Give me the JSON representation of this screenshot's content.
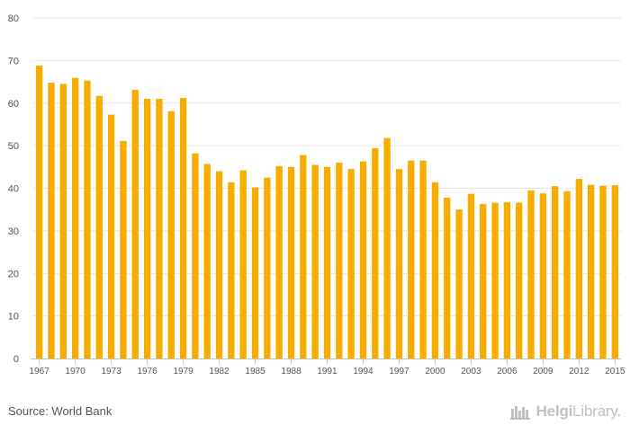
{
  "chart_data": {
    "type": "bar",
    "ylim": [
      0,
      80
    ],
    "yticks": [
      0,
      10,
      20,
      30,
      40,
      50,
      60,
      70,
      80
    ],
    "xtick_labels": [
      "1967",
      "1970",
      "1973",
      "1976",
      "1979",
      "1982",
      "1985",
      "1988",
      "1991",
      "1994",
      "1997",
      "2000",
      "2003",
      "2006",
      "2009",
      "2012",
      "2015"
    ],
    "grid": true,
    "bar_color": "#f7ad00",
    "categories": [
      "1967",
      "1968",
      "1969",
      "1970",
      "1971",
      "1972",
      "1973",
      "1974",
      "1975",
      "1976",
      "1977",
      "1978",
      "1979",
      "1980",
      "1981",
      "1982",
      "1983",
      "1984",
      "1985",
      "1986",
      "1987",
      "1988",
      "1989",
      "1990",
      "1991",
      "1992",
      "1993",
      "1994",
      "1995",
      "1996",
      "1997",
      "1998",
      "1999",
      "2000",
      "2001",
      "2002",
      "2003",
      "2004",
      "2005",
      "2006",
      "2007",
      "2008",
      "2009",
      "2010",
      "2011",
      "2012",
      "2013",
      "2014",
      "2015"
    ],
    "values": [
      68.8,
      64.8,
      64.5,
      65.9,
      65.3,
      61.7,
      57.3,
      51.1,
      63.1,
      61.0,
      61.0,
      58.1,
      61.2,
      48.2,
      45.7,
      44.0,
      41.4,
      44.2,
      40.2,
      42.5,
      45.2,
      45.0,
      47.8,
      45.5,
      45.0,
      46.0,
      44.5,
      46.3,
      49.4,
      51.8,
      44.5,
      46.5,
      46.5,
      41.4,
      37.8,
      35.0,
      38.7,
      36.3,
      36.6,
      36.7,
      36.6,
      39.5,
      38.8,
      40.5,
      39.3,
      42.2,
      40.8,
      40.6,
      40.7
    ]
  },
  "footer": {
    "source": "Source: World Bank",
    "brand_part1": "Helgi",
    "brand_part2": "Library."
  },
  "colors": {
    "grid": "#e6e6e6",
    "axis": "#c0c0c0",
    "tick_label": "#555555",
    "brand": "#c0c0c0"
  }
}
